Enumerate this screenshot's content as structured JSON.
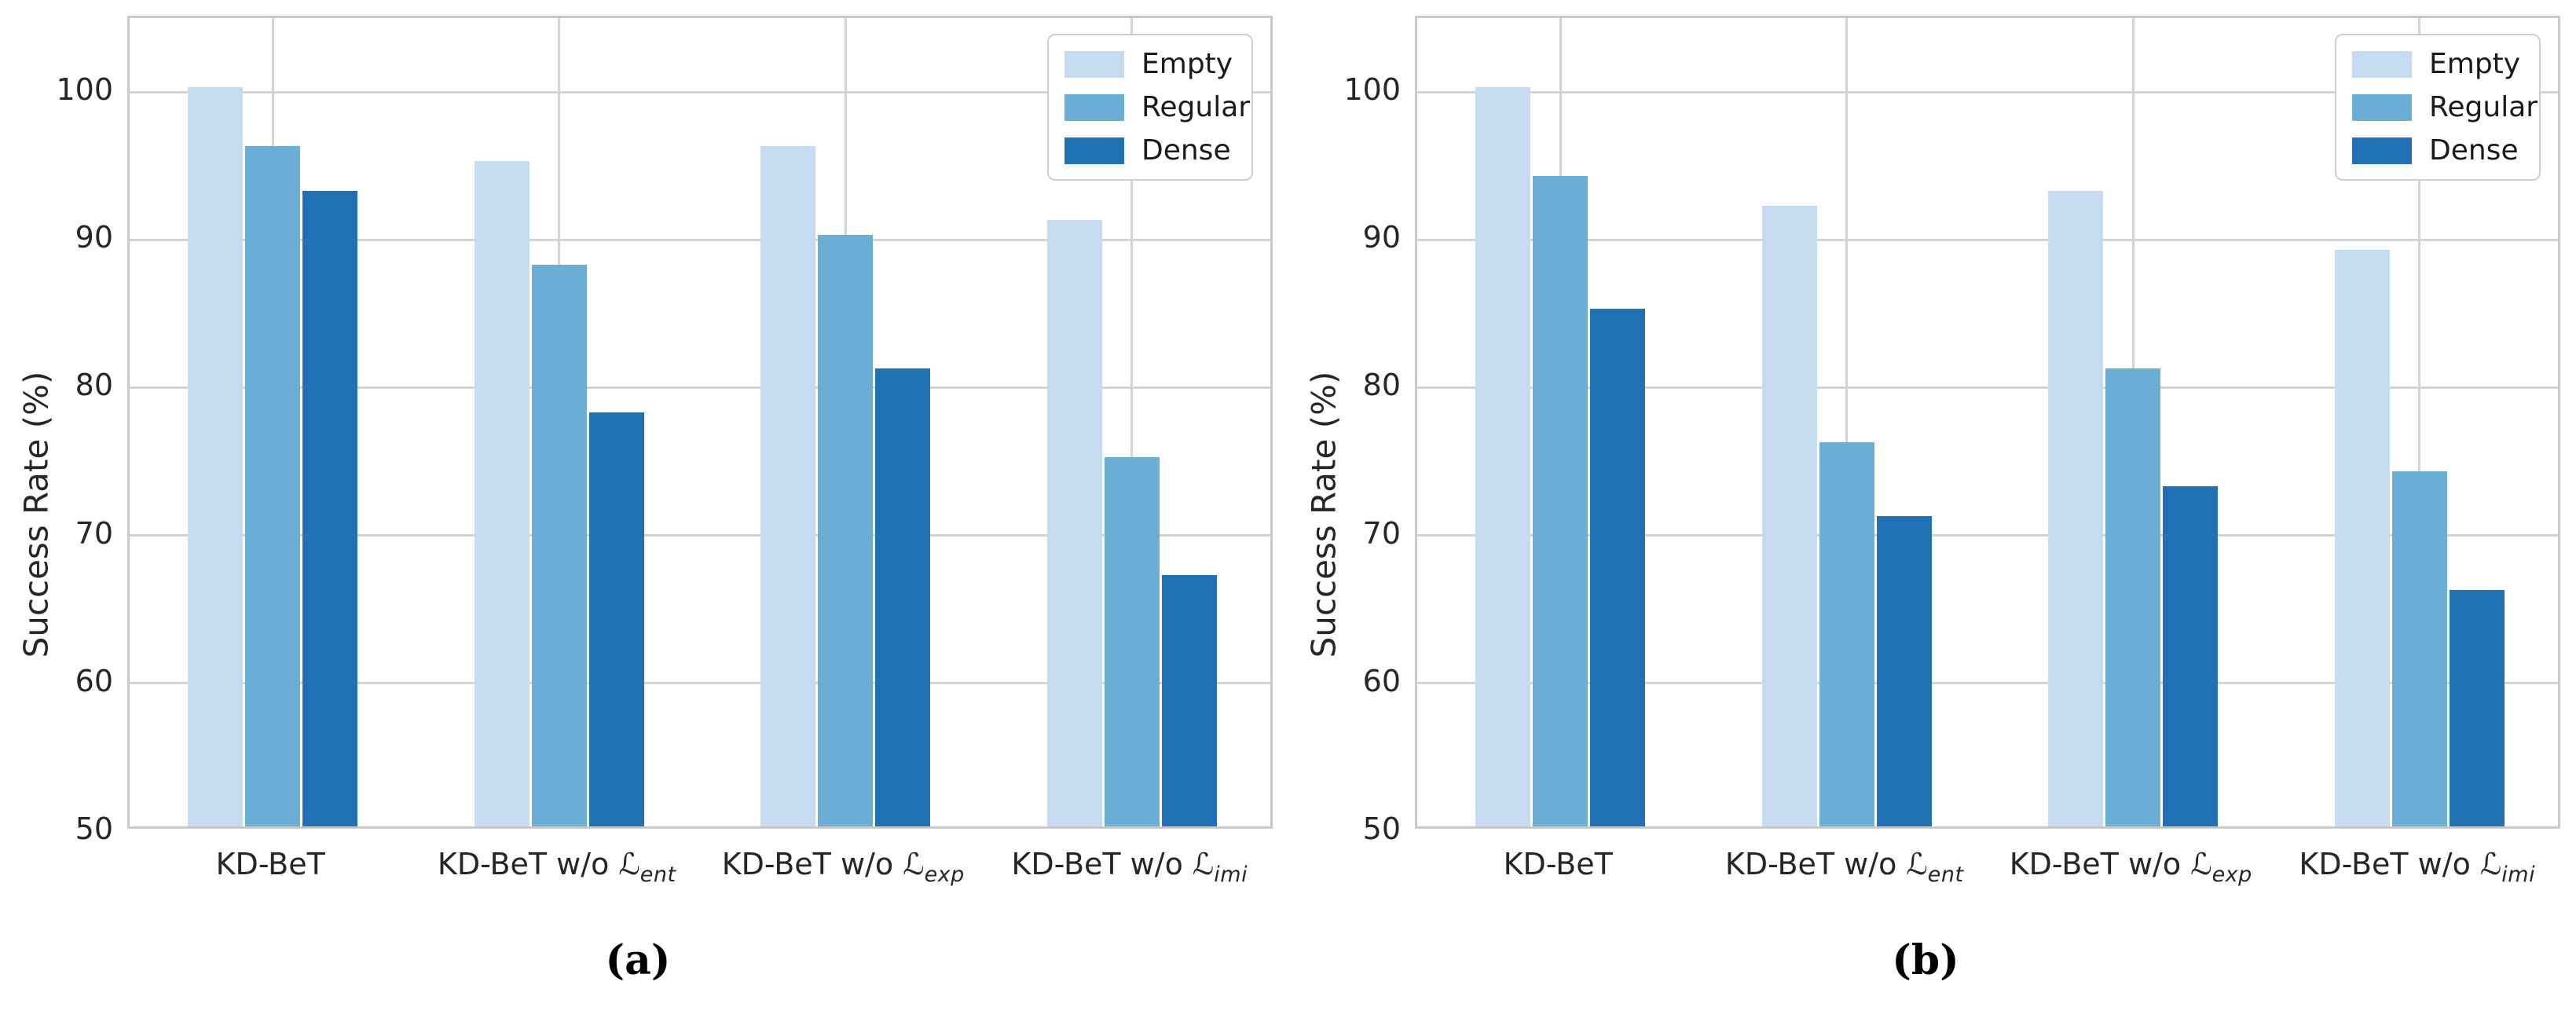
{
  "figure": {
    "description": "Two grouped bar charts comparing success rates of KD-BeT ablations under three traffic densities",
    "text_color": "#262626",
    "grid_color": "#d4d4d4",
    "spine_color": "#c9c9c9",
    "background": "#ffffff"
  },
  "chart_data": [
    {
      "type": "bar",
      "panel_caption": "(a)",
      "title": "",
      "xlabel": "",
      "ylabel": "Success Rate (%)",
      "ylim": [
        50,
        105
      ],
      "yticks": [
        50,
        60,
        70,
        80,
        90,
        100
      ],
      "grid": true,
      "legend_position": "upper right",
      "categories": [
        {
          "prefix": "KD-BeT",
          "cal": "",
          "sub": ""
        },
        {
          "prefix": "KD-BeT w/o ",
          "cal": "ℒ",
          "sub": "ent"
        },
        {
          "prefix": "KD-BeT w/o ",
          "cal": "ℒ",
          "sub": "exp"
        },
        {
          "prefix": "KD-BeT w/o ",
          "cal": "ℒ",
          "sub": "imi"
        }
      ],
      "series": [
        {
          "name": "Empty",
          "color": "#c6dbef",
          "values": [
            100,
            95,
            96,
            91
          ]
        },
        {
          "name": "Regular",
          "color": "#6baed6",
          "values": [
            96,
            88,
            90,
            75
          ]
        },
        {
          "name": "Dense",
          "color": "#2171b5",
          "values": [
            93,
            78,
            81,
            67
          ]
        }
      ]
    },
    {
      "type": "bar",
      "panel_caption": "(b)",
      "title": "",
      "xlabel": "",
      "ylabel": "Success Rate (%)",
      "ylim": [
        50,
        105
      ],
      "yticks": [
        50,
        60,
        70,
        80,
        90,
        100
      ],
      "grid": true,
      "legend_position": "upper right",
      "categories": [
        {
          "prefix": "KD-BeT",
          "cal": "",
          "sub": ""
        },
        {
          "prefix": "KD-BeT w/o ",
          "cal": "ℒ",
          "sub": "ent"
        },
        {
          "prefix": "KD-BeT w/o ",
          "cal": "ℒ",
          "sub": "exp"
        },
        {
          "prefix": "KD-BeT w/o ",
          "cal": "ℒ",
          "sub": "imi"
        }
      ],
      "series": [
        {
          "name": "Empty",
          "color": "#c6dbef",
          "values": [
            100,
            92,
            93,
            89
          ]
        },
        {
          "name": "Regular",
          "color": "#6baed6",
          "values": [
            94,
            76,
            81,
            74
          ]
        },
        {
          "name": "Dense",
          "color": "#2171b5",
          "values": [
            85,
            71,
            73,
            66
          ]
        }
      ]
    }
  ]
}
